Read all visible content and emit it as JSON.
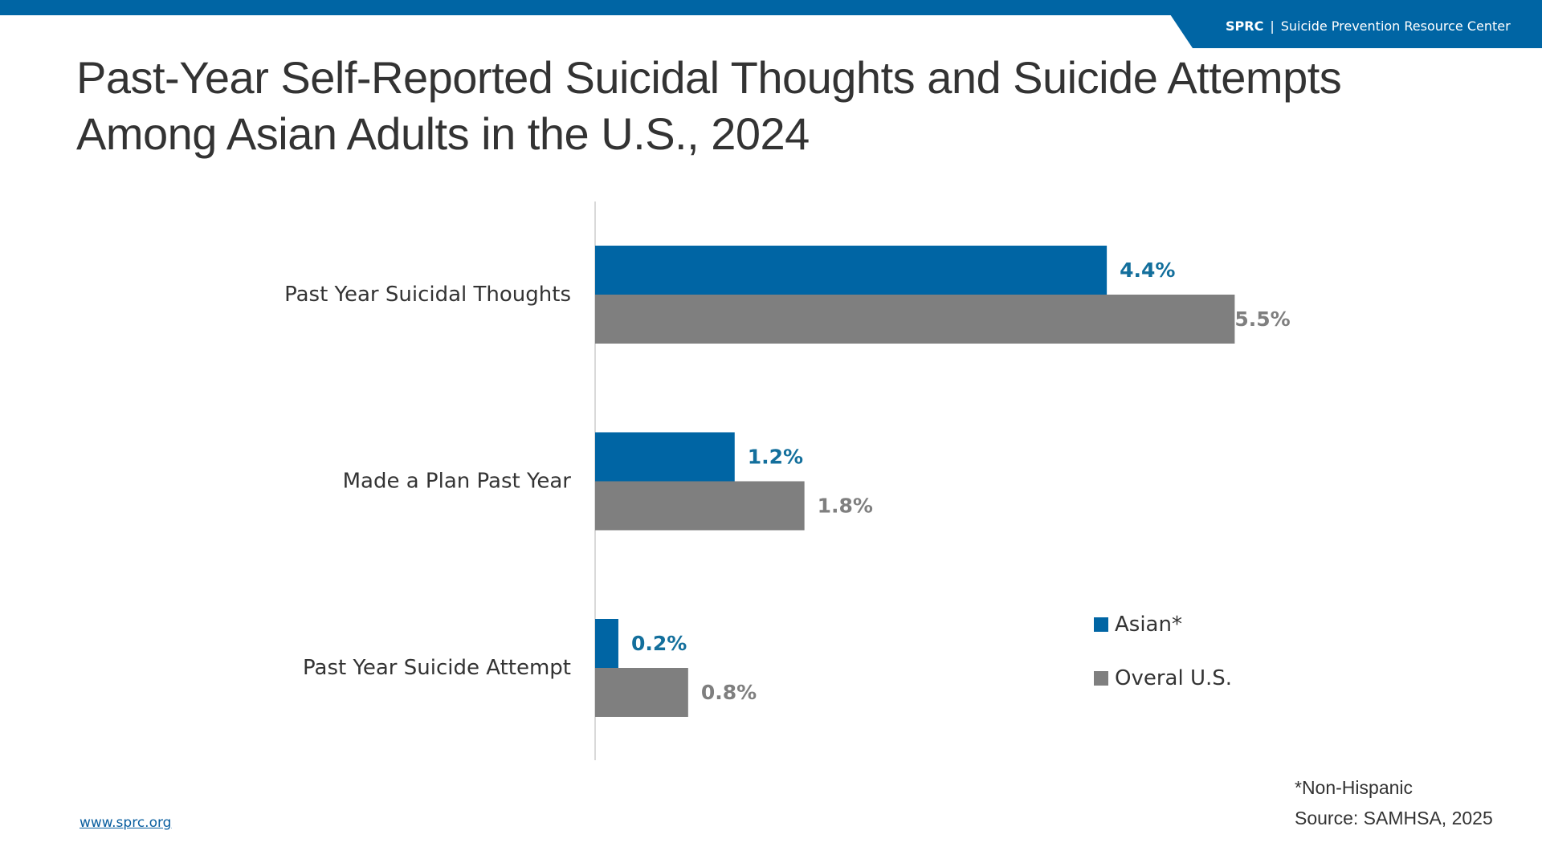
{
  "header": {
    "org_abbr": "SPRC",
    "separator": "|",
    "org_name": "Suicide Prevention Resource Center",
    "brand_color": "#0065a4"
  },
  "title": {
    "line1": "Past-Year Self-Reported Suicidal Thoughts and Suicide Attempts",
    "line2": "Among Asian Adults in the U.S., 2024"
  },
  "chart_data": {
    "type": "bar",
    "orientation": "horizontal",
    "title": "Past-Year Self-Reported Suicidal Thoughts and Suicide Attempts Among Asian Adults in the U.S., 2024",
    "categories": [
      "Past Year Suicidal Thoughts",
      "Made a Plan Past Year",
      "Past Year Suicide Attempt"
    ],
    "series": [
      {
        "name": "Asian*",
        "color": "#0065a4",
        "label_color": "#136f9c",
        "values": [
          4.4,
          1.2,
          0.2
        ],
        "labels": [
          "4.4%",
          "1.2%",
          "0.2%"
        ]
      },
      {
        "name": "Overal U.S.",
        "color": "#7f7f7f",
        "label_color": "#7f7f7f",
        "values": [
          5.5,
          1.8,
          0.8
        ],
        "labels": [
          "5.5%",
          "1.8%",
          "0.8%"
        ]
      }
    ],
    "xlim": [
      0,
      8
    ],
    "unit": "%",
    "grid": false,
    "legend_position": "bottom-right"
  },
  "legend": {
    "items": [
      {
        "label": "Asian*",
        "color": "#0065a4"
      },
      {
        "label": "Overal U.S.",
        "color": "#7f7f7f"
      }
    ]
  },
  "notes": {
    "footnote": "*Non-Hispanic",
    "source": "Source: SAMHSA, 2025"
  },
  "footer": {
    "url": "www.sprc.org"
  }
}
